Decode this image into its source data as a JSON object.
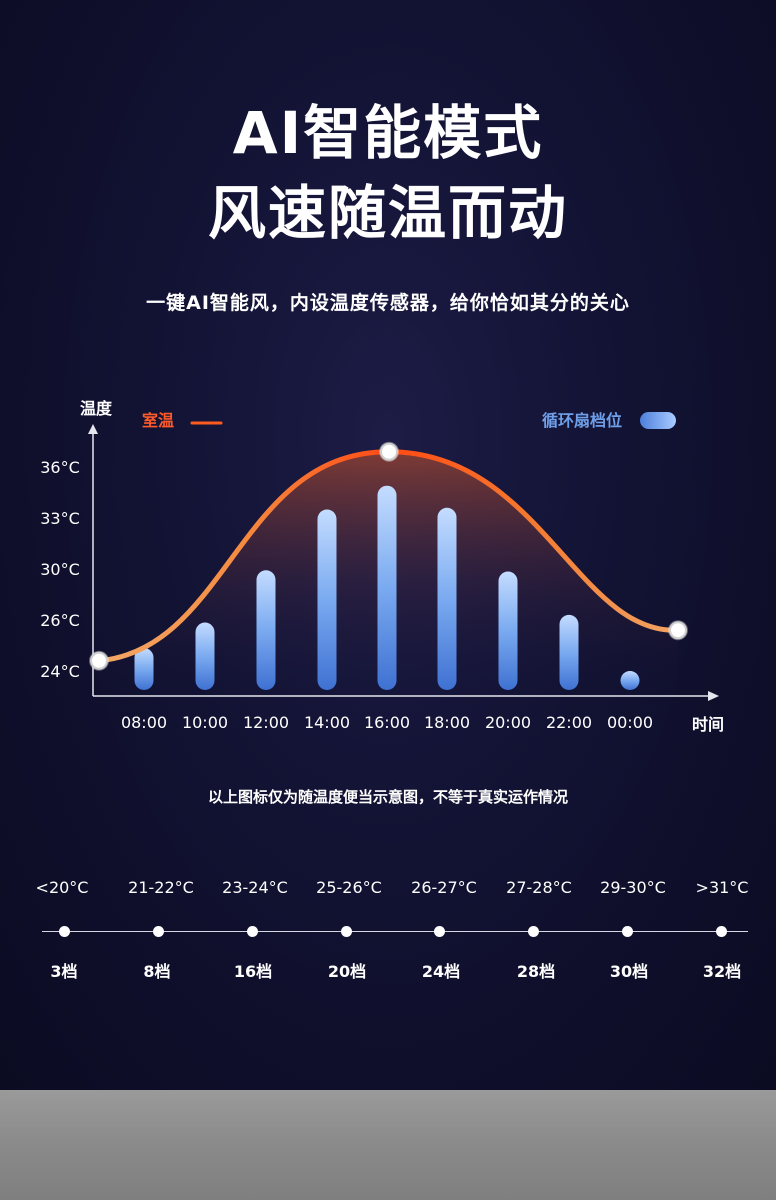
{
  "headline": {
    "line1": "AI智能模式",
    "line2": "风速随温而动"
  },
  "subtitle": "一键AI智能风，内设温度传感器，给你恰如其分的关心",
  "note": "以上图标仅为随温度便当示意图，不等于真实运作情况",
  "colors": {
    "background": "#121233",
    "temperature_curve": "#ff5a1f",
    "fan_bar": "#6fa4ee",
    "temp_legend_text": "#ff5a2a",
    "fan_legend_text": "#6f9fe8"
  },
  "chart_data": {
    "type": "line",
    "ylabel": "温度",
    "xlabel": "时间",
    "yticks": [
      "24°C",
      "26°C",
      "30°C",
      "33°C",
      "36°C"
    ],
    "x": [
      "08:00",
      "10:00",
      "12:00",
      "14:00",
      "16:00",
      "18:00",
      "20:00",
      "22:00",
      "00:00"
    ],
    "legend_placement": "top",
    "series": [
      {
        "name": "室温",
        "type": "line",
        "values": [
          24.6,
          27.4,
          30.6,
          34.2,
          35.7,
          34.3,
          31.0,
          27.8,
          25.3
        ],
        "start": 24.4,
        "peak": 36.9,
        "end": 25.6
      },
      {
        "name": "循环扇档位",
        "type": "bar",
        "values": [
          24.9,
          25.9,
          29.9,
          33.5,
          34.9,
          33.6,
          29.8,
          26.4,
          24.0
        ]
      }
    ]
  },
  "scale": {
    "temperatures": [
      "<20°C",
      "21-22°C",
      "23-24°C",
      "25-26°C",
      "26-27°C",
      "27-28°C",
      "29-30°C",
      ">31°C"
    ],
    "levels": [
      "3档",
      "8档",
      "16档",
      "20档",
      "24档",
      "28档",
      "30档",
      "32档"
    ]
  }
}
